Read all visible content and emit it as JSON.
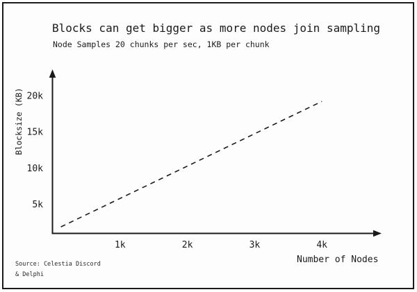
{
  "source": {
    "line1": "Source: Celestia Discord",
    "line2": "& Delphi"
  },
  "colors": {
    "ink": "#1a1a1a",
    "paper": "#fdfdfd"
  },
  "chart_data": {
    "type": "line",
    "title": "Blocks can get bigger as more nodes join sampling",
    "subtitle": "Node Samples 20 chunks per sec, 1KB per chunk",
    "xlabel": "Number of Nodes",
    "ylabel": "Blocksize (KB)",
    "xlim": [
      0,
      4870
    ],
    "ylim": [
      0,
      23500
    ],
    "grid": false,
    "legend": false,
    "axis_color": "#1a1a1a",
    "x_ticks": [
      {
        "value": 1000,
        "label": "1k"
      },
      {
        "value": 2000,
        "label": "2k"
      },
      {
        "value": 3000,
        "label": "3k"
      },
      {
        "value": 4000,
        "label": "4k"
      }
    ],
    "y_ticks": [
      {
        "value": 5000,
        "label": "5k"
      },
      {
        "value": 10000,
        "label": "10k"
      },
      {
        "value": 15000,
        "label": "15k"
      },
      {
        "value": 20000,
        "label": "20k"
      }
    ],
    "series": [
      {
        "name": "blocksize-vs-nodes",
        "line_style": "dashed",
        "color": "#1a1a1a",
        "points": [
          {
            "x": 120,
            "y": 1900
          },
          {
            "x": 4000,
            "y": 19200
          }
        ]
      }
    ]
  }
}
